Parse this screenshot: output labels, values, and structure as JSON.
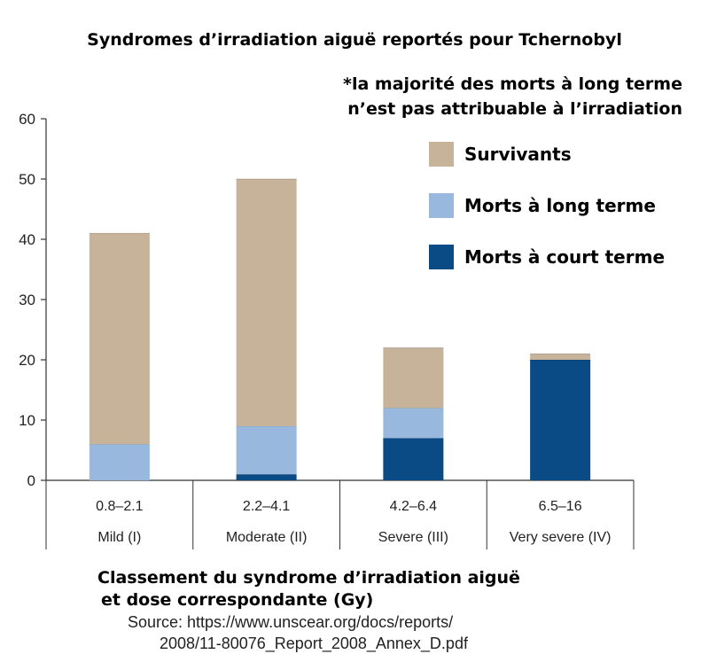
{
  "chart_data": {
    "type": "bar",
    "stacked": true,
    "title": "Syndromes d’irradiation aiguë reportés pour Tchernobyl",
    "annotation": [
      "*la majorité des morts à long terme",
      "n’est pas attribuable à l’irradiation"
    ],
    "xlabel": [
      "Classement du syndrome d’irradiation aiguë",
      "et dose correspondante (Gy)"
    ],
    "source": [
      "Source: https://www.unscear.org/docs/reports/",
      "2008/11-80076_Report_2008_Annex_D.pdf"
    ],
    "ylabel": "",
    "ylim": [
      0,
      60
    ],
    "yticks": [
      0,
      10,
      20,
      30,
      40,
      50,
      60
    ],
    "grid": false,
    "legend_position": "top-right",
    "categories": [
      {
        "dose": "0.8–2.1",
        "name": "Mild (I)"
      },
      {
        "dose": "2.2–4.1",
        "name": "Moderate (II)"
      },
      {
        "dose": "4.2–6.4",
        "name": "Severe (III)"
      },
      {
        "dose": "6.5–16",
        "name": "Very severe (IV)"
      }
    ],
    "series": [
      {
        "name": "Morts à court terme",
        "color": "#0a4a85",
        "values": [
          0,
          1,
          7,
          20
        ]
      },
      {
        "name": "Morts à long terme",
        "color": "#98b8de",
        "values": [
          6,
          8,
          5,
          0
        ]
      },
      {
        "name": "Survivants",
        "color": "#c7b39a",
        "values": [
          35,
          41,
          10,
          1
        ]
      }
    ],
    "legend_order": [
      "Survivants",
      "Morts à long terme",
      "Morts à court terme"
    ]
  }
}
